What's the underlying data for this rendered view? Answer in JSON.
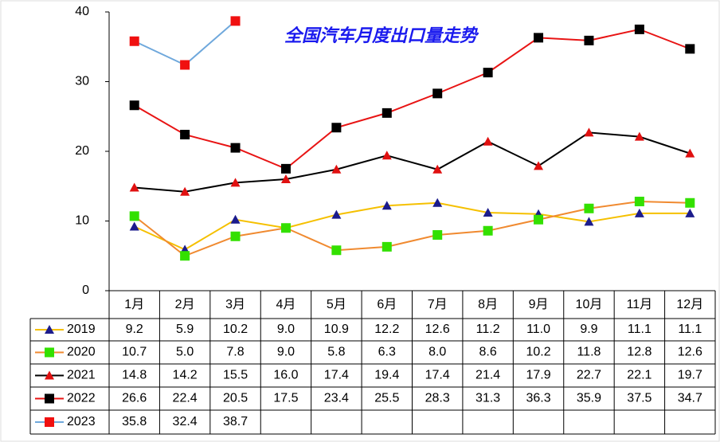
{
  "chart_data": {
    "type": "line",
    "title": "全国汽车月度出口量走势",
    "categories": [
      "1月",
      "2月",
      "3月",
      "4月",
      "5月",
      "6月",
      "7月",
      "8月",
      "9月",
      "10月",
      "11月",
      "12月"
    ],
    "ylim": [
      0,
      40
    ],
    "yticks": [
      0,
      10,
      20,
      30,
      40
    ],
    "series": [
      {
        "name": "2019",
        "color": "#f5c000",
        "marker": "triangle",
        "marker_color": "#1c1c8c",
        "values": [
          9.2,
          5.9,
          10.2,
          9.0,
          10.9,
          12.2,
          12.6,
          11.2,
          11.0,
          9.9,
          11.1,
          11.1
        ],
        "value_labels": [
          "9.2",
          "5.9",
          "10.2",
          "9.0",
          "10.9",
          "12.2",
          "12.6",
          "11.2",
          "11.0",
          "9.9",
          "11.1",
          "11.1"
        ]
      },
      {
        "name": "2020",
        "color": "#f08a30",
        "marker": "square",
        "marker_color": "#33e000",
        "values": [
          10.7,
          5.0,
          7.8,
          9.0,
          5.8,
          6.3,
          8.0,
          8.6,
          10.2,
          11.8,
          12.8,
          12.6
        ],
        "value_labels": [
          "10.7",
          "5.0",
          "7.8",
          "9.0",
          "5.8",
          "6.3",
          "8.0",
          "8.6",
          "10.2",
          "11.8",
          "12.8",
          "12.6"
        ]
      },
      {
        "name": "2021",
        "color": "#000000",
        "marker": "triangle",
        "marker_color": "#e01010",
        "values": [
          14.8,
          14.2,
          15.5,
          16.0,
          17.4,
          19.4,
          17.4,
          21.4,
          17.9,
          22.7,
          22.1,
          19.7
        ],
        "value_labels": [
          "14.8",
          "14.2",
          "15.5",
          "16.0",
          "17.4",
          "19.4",
          "17.4",
          "21.4",
          "17.9",
          "22.7",
          "22.1",
          "19.7"
        ]
      },
      {
        "name": "2022",
        "color": "#e81414",
        "marker": "square",
        "marker_color": "#000000",
        "values": [
          26.6,
          22.4,
          20.5,
          17.5,
          23.4,
          25.5,
          28.3,
          31.3,
          36.3,
          35.9,
          37.5,
          34.7
        ],
        "value_labels": [
          "26.6",
          "22.4",
          "20.5",
          "17.5",
          "23.4",
          "25.5",
          "28.3",
          "31.3",
          "36.3",
          "35.9",
          "37.5",
          "34.7"
        ]
      },
      {
        "name": "2023",
        "color": "#6fa8dc",
        "marker": "square",
        "marker_color": "#f01010",
        "values": [
          35.8,
          32.4,
          38.7,
          null,
          null,
          null,
          null,
          null,
          null,
          null,
          null,
          null
        ],
        "value_labels": [
          "35.8",
          "32.4",
          "38.7",
          null,
          null,
          null,
          null,
          null,
          null,
          null,
          null,
          null
        ]
      }
    ]
  }
}
